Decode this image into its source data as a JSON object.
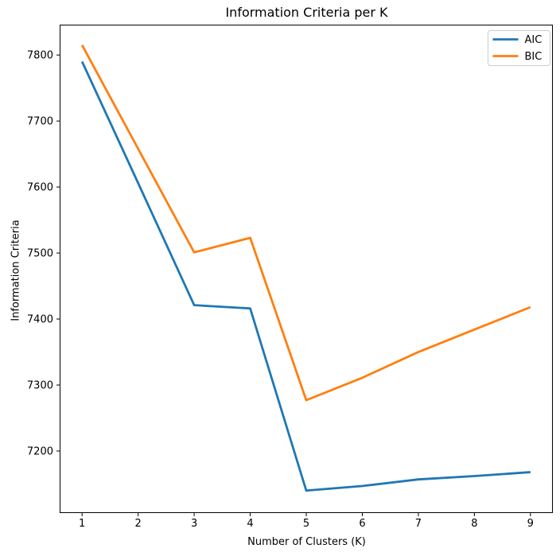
{
  "figure": {
    "background": "#ffffff"
  },
  "chart_data": {
    "type": "line",
    "title": "Information Criteria per K",
    "xlabel": "Number of Clusters (K)",
    "ylabel": "Information Criteria",
    "x": [
      1,
      2,
      3,
      4,
      5,
      6,
      7,
      8,
      9
    ],
    "series": [
      {
        "name": "AIC",
        "color": "#1f77b4",
        "values": [
          7790,
          7606,
          7421,
          7416,
          7140,
          7147,
          7157,
          7162,
          7168
        ]
      },
      {
        "name": "BIC",
        "color": "#ff7f0e",
        "values": [
          7815,
          7658,
          7501,
          7523,
          7277,
          7311,
          7350,
          7384,
          7418
        ]
      }
    ],
    "xlim": [
      0.6,
      9.4
    ],
    "ylim": [
      7106,
      7846
    ],
    "xticks": [
      1,
      2,
      3,
      4,
      5,
      6,
      7,
      8,
      9
    ],
    "yticks": [
      7200,
      7300,
      7400,
      7500,
      7600,
      7700,
      7800
    ],
    "grid": false,
    "legend": {
      "position": "upper right",
      "entries": [
        "AIC",
        "BIC"
      ]
    }
  },
  "style": {
    "axis_color": "#000000",
    "text_color": "#000000",
    "legend_border": "#cccccc",
    "legend_bg": "#ffffff",
    "line_width": 2.8,
    "spine_width": 1
  }
}
